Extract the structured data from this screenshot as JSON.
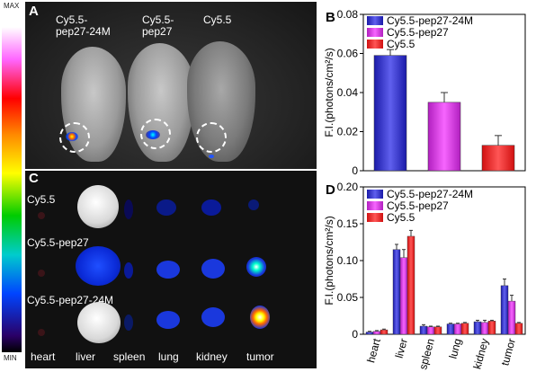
{
  "colorbar": {
    "max_label": "MAX",
    "min_label": "MIN"
  },
  "panel_a": {
    "letter": "A",
    "labels": [
      "Cy5.5-\npep27-24M",
      "Cy5.5-\npep27",
      "Cy5.5"
    ]
  },
  "panel_c": {
    "letter": "C",
    "row_labels": [
      "Cy5.5",
      "Cy5.5-pep27",
      "Cy5.5-pep27-24M"
    ],
    "organ_labels": [
      "heart",
      "liver",
      "spleen",
      "lung",
      "kidney",
      "tumor"
    ]
  },
  "colors": {
    "cy55_pep27_24m": "#1a1aa8",
    "cy55_pep27": "#b11fbf",
    "cy55": "#d01010"
  },
  "chart_data": [
    {
      "type": "bar",
      "panel": "B",
      "categories": [
        "Cy5.5-pep27-24M",
        "Cy5.5-pep27",
        "Cy5.5"
      ],
      "values": [
        0.059,
        0.035,
        0.013
      ],
      "errors": [
        0.003,
        0.005,
        0.005
      ],
      "colors": [
        "#1a1aa8",
        "#b11fbf",
        "#d01010"
      ],
      "legend": [
        "Cy5.5-pep27-24M",
        "Cy5.5-pep27",
        "Cy5.5"
      ],
      "ylabel": "F.I.(photons/cm²/s)",
      "ylim": [
        0,
        0.08
      ],
      "yticks": [
        "0",
        "0.02",
        "0.04",
        "0.06",
        "0.08"
      ],
      "legend_position": "top-right"
    },
    {
      "type": "bar",
      "panel": "D",
      "categories": [
        "heart",
        "liver",
        "spleen",
        "lung",
        "kidney",
        "tumor"
      ],
      "series": [
        {
          "name": "Cy5.5-pep27-24M",
          "values": [
            0.003,
            0.115,
            0.011,
            0.014,
            0.017,
            0.066
          ],
          "errors": [
            0.001,
            0.007,
            0.002,
            0.001,
            0.002,
            0.009
          ]
        },
        {
          "name": "Cy5.5-pep27",
          "values": [
            0.004,
            0.104,
            0.01,
            0.014,
            0.016,
            0.045
          ],
          "errors": [
            0.001,
            0.011,
            0.001,
            0.001,
            0.003,
            0.008
          ]
        },
        {
          "name": "Cy5.5",
          "values": [
            0.006,
            0.133,
            0.01,
            0.015,
            0.018,
            0.015
          ],
          "errors": [
            0.001,
            0.008,
            0.001,
            0.001,
            0.001,
            0.001
          ]
        }
      ],
      "ylabel": "F.I.(photons/cm²/s)",
      "ylim": [
        0,
        0.2
      ],
      "yticks": [
        "0",
        "0.05",
        "0.10",
        "0.15",
        "0.20"
      ],
      "legend_position": "top-left"
    }
  ]
}
